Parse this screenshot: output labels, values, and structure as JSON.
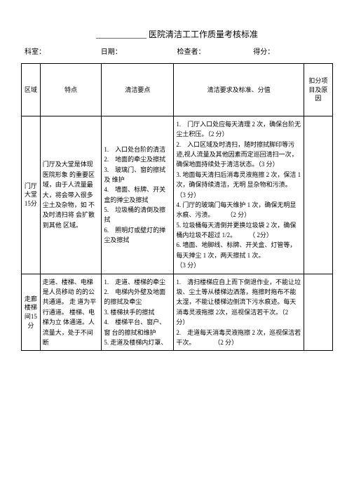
{
  "title_prefix": "____________",
  "title": " 医院清洁工工作质量考核标准",
  "header": {
    "dept": "科室：",
    "date": "日期：",
    "checker": "检查者：",
    "score": "得分："
  },
  "columns": {
    "c1": "区域",
    "c2": "特点",
    "c3": "清洁要点",
    "c4": "清洁要求及标准、分值",
    "c5": "扣分项目及原因"
  },
  "row1": {
    "area": "门厅大堂15分",
    "feature": "门厅及大堂是体现医院形象 的重要区域，由于人流量最大，将会带入很多 尘土及杂物，如 不及时清扫将 会扩散到其他 区域。",
    "points": "1.　入口处台阶的清洁\n2.　地面的牵尘及擦拭\n3.　玻璃门、窗的擦拭及 维护\n4.　墙面、标牌、开关盒的掸尘及擦拭\n5.　垃圾桶的清倒及擦拭\n6.　照明灯或壁灯的掸尘及擦拭",
    "requirements": "1.　门厅入口处应每天清理 2 次，确保台阶无尘土积压。（2 分）\n2.　入口区域及时清扫，随时擦拭脚印等污迹,视人流量及其他因素而定巡回清扫一次，确保地面持续处于清洁状态。（3 分）\n3. 地面每天清扫后消毒灵液拖擦 2 次，保洁 1 次，确保持续清洁，无明 显杂物和污渍。\n（3 分）\n4. 门厅的玻璃门每天维护 1 次，确保无明显水痕、污渍。　　　（2 分）\n5. 垃圾桶每天清倒并更换垃圾袋 2 次，确保桶内垃圾不超过 1/2。　　　（ 2分）\n6. 墙面、地脚线、标牌、开关盒、灯管等，每天掸尘 1 次，两天擦拭 1 次。\n（3 分）"
  },
  "row2": {
    "area": "走廊楼梯间15分",
    "feature": "走道、楼梯、电梯是人员移动 的的公共通道。 走 道为平行通道。 楼梯、电梯为立 体通道。人流量大，处于不间断",
    "points": "1.　走道、楼梯的牵尘\n2.　电梯内外壁及地面的擦拭及牵尘\n3. 楼梯扶手的擦拭\n4.　楼梯平台、窗户、窗 台的擦拭和维护\n5. 走道及楼梯内灯罩、",
    "requirements": "1.　清扫楼梯应自上而下倒退作业，不能让垃圾、尘土等从楼梯边洒落，拖擦时拖布不能太湿，不能让楼梯边侧流下污水痕迹。每天消毒灵液拖擦 2次，巡视保洁若干次。（2 分）\n2.　走道每天消毒灵液拖擦 2 次，巡视保洁若干次。　　　　（2 分）"
  }
}
